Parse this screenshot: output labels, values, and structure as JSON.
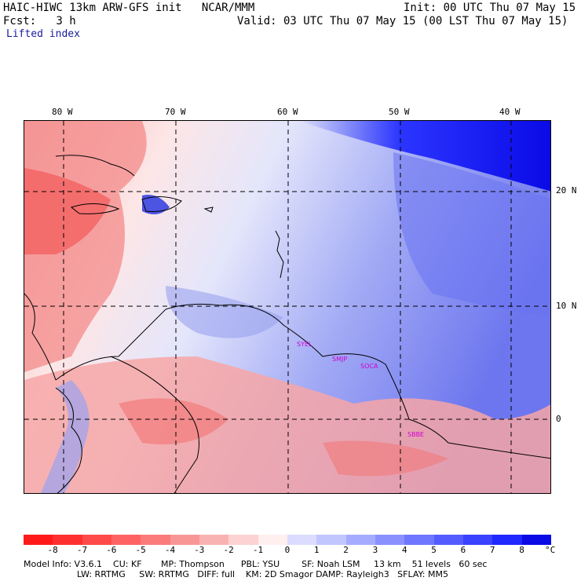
{
  "header": {
    "title": "HAIC-HIWC 13km ARW-GFS init   NCAR/MMM",
    "init": "Init: 00 UTC Thu 07 May 15",
    "fcst": "Fcst:   3 h",
    "valid": "Valid: 03 UTC Thu 07 May 15 (00 LST Thu 07 May 15)",
    "field": "Lifted index"
  },
  "map": {
    "lon_labels": [
      "80 W",
      "70 W",
      "60 W",
      "50 W",
      "40 W"
    ],
    "lat_labels": [
      "20 N",
      "10 N",
      "0"
    ],
    "stations": [
      "SYEL",
      "SMJP",
      "SOCA",
      "SBBE"
    ]
  },
  "colorbar": {
    "labels": [
      "-8",
      "-7",
      "-6",
      "-5",
      "-4",
      "-3",
      "-2",
      "-1",
      "0",
      "1",
      "2",
      "3",
      "4",
      "5",
      "6",
      "7",
      "8"
    ],
    "unit": "°C",
    "colors": [
      "#ff1a1a",
      "#ff3030",
      "#ff4a4a",
      "#ff6262",
      "#fb7b7b",
      "#f89696",
      "#f9b2b2",
      "#fcd2d2",
      "#ffefef",
      "#dcdcff",
      "#c1c6ff",
      "#a5acff",
      "#8a91ff",
      "#6f76ff",
      "#545cff",
      "#3a42ff",
      "#1f28ff",
      "#0a0ae6"
    ]
  },
  "footer": {
    "line1": "Model Info: V3.6.1    CU: KF       MP: Thompson      PBL: YSU        SF: Noah LSM     13 km    51 levels   60 sec",
    "line2": "LW: RRTMG     SW: RRTMG   DIFF: full    KM: 2D Smagor DAMP: Rayleigh3   SFLAY: MM5"
  }
}
